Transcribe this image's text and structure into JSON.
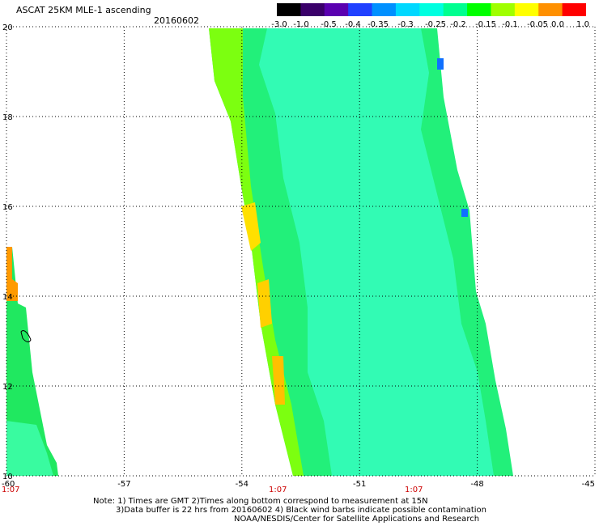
{
  "title": "ASCAT 25KM MLE-1 ascending",
  "date": "20160602",
  "colorbar": {
    "labels": [
      "-3.0",
      "-1.0",
      "-0.5",
      "-0.4",
      "-0.35",
      "-0.3",
      "-0.25",
      "-0.2",
      "-0.15",
      "-0.1",
      "-0.05",
      "0.0",
      "1.0"
    ],
    "colors": [
      "#000000",
      "#3a006a",
      "#5a00b0",
      "#2040ff",
      "#0090ff",
      "#00d8ff",
      "#00ffe0",
      "#00ff90",
      "#00ff00",
      "#a0ff00",
      "#ffff00",
      "#ff9000",
      "#ff0000"
    ]
  },
  "axes": {
    "x_ticks": [
      "-60",
      "-57",
      "-54",
      "-51",
      "-48",
      "-45"
    ],
    "y_ticks": [
      "20",
      "18",
      "16",
      "14",
      "12",
      "10"
    ],
    "times": [
      "1:07",
      "1:07",
      "1:07"
    ],
    "time_color": "#cc0000"
  },
  "note": {
    "line1": "Note: 1) Times are GMT 2)Times along bottom correspond to measurement at 15N",
    "line2": "3)Data buffer is 22 hrs from 20160602 4) Black wind barbs indicate possible contamination",
    "line3": "NOAA/NESDIS/Center for Satellite Applications and Research"
  }
}
